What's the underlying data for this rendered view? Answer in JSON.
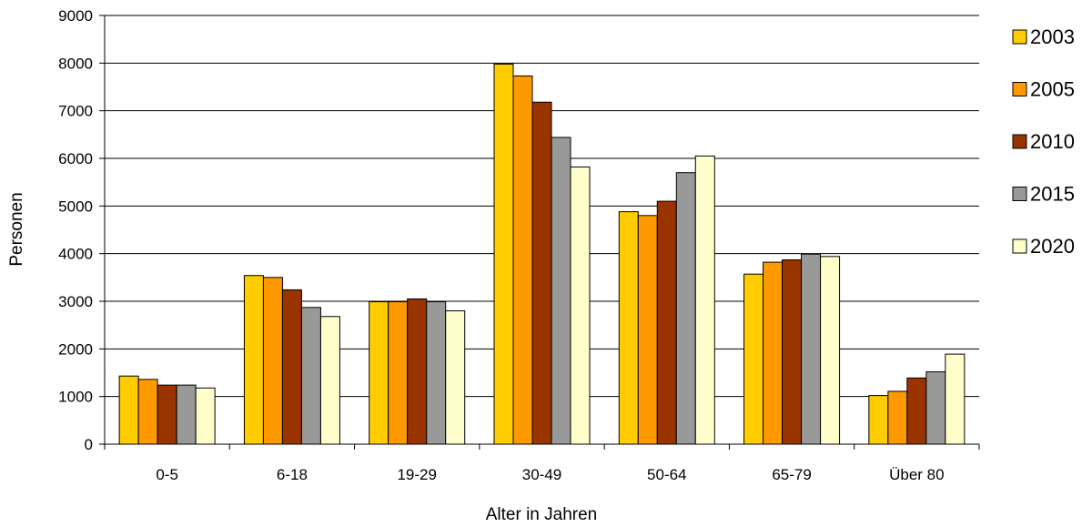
{
  "chart_data": {
    "type": "bar",
    "title": "",
    "xlabel": "Alter in Jahren",
    "ylabel": "Personen",
    "ylim": [
      0,
      9000
    ],
    "yticks": [
      0,
      1000,
      2000,
      3000,
      4000,
      5000,
      6000,
      7000,
      8000,
      9000
    ],
    "grid": true,
    "legend_position": "right",
    "categories": [
      "0-5",
      "6-18",
      "19-29",
      "30-49",
      "50-64",
      "65-79",
      "Über 80"
    ],
    "series": [
      {
        "name": "2003",
        "color": "#FFCC00",
        "values": [
          1430,
          3540,
          2990,
          7980,
          4880,
          3570,
          1020
        ]
      },
      {
        "name": "2005",
        "color": "#FF9900",
        "values": [
          1360,
          3500,
          2990,
          7730,
          4800,
          3820,
          1110
        ]
      },
      {
        "name": "2010",
        "color": "#993300",
        "values": [
          1240,
          3240,
          3050,
          7180,
          5100,
          3870,
          1390
        ]
      },
      {
        "name": "2015",
        "color": "#999999",
        "values": [
          1240,
          2870,
          2990,
          6440,
          5700,
          3990,
          1520
        ]
      },
      {
        "name": "2020",
        "color": "#FFFFCC",
        "values": [
          1180,
          2680,
          2800,
          5820,
          6050,
          3940,
          1890
        ]
      }
    ]
  }
}
